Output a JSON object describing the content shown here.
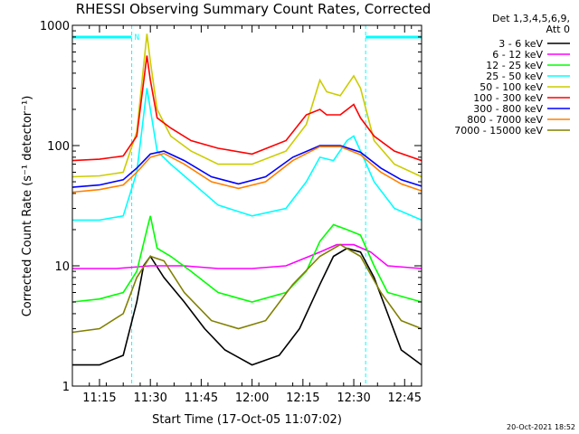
{
  "chart_data": {
    "type": "line",
    "title": "RHESSI Observing Summary Count Rates, Corrected",
    "xlabel": "Start Time (17-Oct-05 11:07:02)",
    "ylabel": "Corrected Count Rate (s⁻¹ detector⁻¹)",
    "y_scale": "log",
    "ylim": [
      1,
      1000
    ],
    "xlim_minutes": [
      667.0,
      770.0
    ],
    "x_ticks": [
      {
        "minute": 675,
        "label": "11:15"
      },
      {
        "minute": 690,
        "label": "11:30"
      },
      {
        "minute": 705,
        "label": "11:45"
      },
      {
        "minute": 720,
        "label": "12:00"
      },
      {
        "minute": 735,
        "label": "12:15"
      },
      {
        "minute": 750,
        "label": "12:30"
      },
      {
        "minute": 765,
        "label": "12:45"
      }
    ],
    "y_ticks": [
      {
        "value": 1,
        "label": "1"
      },
      {
        "value": 10,
        "label": "10"
      },
      {
        "value": 100,
        "label": "100"
      },
      {
        "value": 1000,
        "label": "1000"
      }
    ],
    "legend_header": [
      "Det 1,3,4,5,6,9,",
      "Att 0"
    ],
    "legend_position": "right",
    "night_label": "N",
    "night_intervals": [
      [
        667.0,
        684.5
      ],
      [
        753.5,
        770.0
      ]
    ],
    "timestamp": "20-Oct-2021 18:52",
    "series": [
      {
        "name": "3 - 6 keV",
        "color": "#000000",
        "x": [
          667,
          675,
          682,
          686,
          688,
          690,
          694,
          700,
          706,
          712,
          720,
          728,
          734,
          740,
          744,
          748,
          752,
          756,
          760,
          764,
          770
        ],
        "y": [
          1.5,
          1.5,
          1.8,
          5,
          10,
          12,
          8,
          5,
          3,
          2,
          1.5,
          1.8,
          3,
          7,
          12,
          14,
          13,
          8,
          4,
          2,
          1.5
        ]
      },
      {
        "name": "6 - 12 keV",
        "color": "#ff00ff",
        "x": [
          667,
          680,
          690,
          700,
          710,
          720,
          730,
          740,
          745,
          750,
          755,
          760,
          770
        ],
        "y": [
          9.5,
          9.5,
          10,
          10,
          9.5,
          9.5,
          10,
          13,
          15,
          15,
          13,
          10,
          9.5
        ]
      },
      {
        "name": "12 - 25 keV",
        "color": "#00ff00",
        "x": [
          667,
          675,
          682,
          686,
          689,
          690,
          692,
          696,
          702,
          710,
          720,
          730,
          736,
          740,
          744,
          748,
          752,
          756,
          760,
          770
        ],
        "y": [
          5,
          5.3,
          6,
          9,
          20,
          26,
          14,
          12,
          9,
          6,
          5,
          6,
          9,
          16,
          22,
          20,
          18,
          10,
          6,
          5
        ]
      },
      {
        "name": "25 - 50 keV",
        "color": "#00ffff",
        "x": [
          667,
          675,
          682,
          686,
          689,
          690,
          692,
          696,
          702,
          710,
          720,
          730,
          736,
          740,
          744,
          748,
          750,
          752,
          756,
          762,
          770
        ],
        "y": [
          24,
          24,
          26,
          60,
          300,
          200,
          90,
          70,
          50,
          32,
          26,
          30,
          50,
          80,
          75,
          110,
          120,
          90,
          50,
          30,
          24
        ]
      },
      {
        "name": "50 - 100 keV",
        "color": "#cccc00",
        "x": [
          667,
          675,
          682,
          686,
          689,
          690,
          692,
          696,
          702,
          710,
          720,
          730,
          736,
          740,
          742,
          746,
          750,
          752,
          756,
          762,
          770
        ],
        "y": [
          55,
          56,
          60,
          130,
          850,
          500,
          200,
          120,
          90,
          70,
          70,
          90,
          150,
          350,
          280,
          260,
          380,
          300,
          110,
          70,
          55
        ]
      },
      {
        "name": "100 - 300 keV",
        "color": "#ff0000",
        "x": [
          667,
          675,
          682,
          686,
          689,
          690,
          692,
          696,
          702,
          710,
          720,
          730,
          736,
          740,
          742,
          746,
          750,
          752,
          756,
          762,
          770
        ],
        "y": [
          75,
          77,
          82,
          120,
          560,
          350,
          170,
          140,
          110,
          95,
          85,
          110,
          180,
          200,
          180,
          180,
          220,
          170,
          120,
          90,
          75
        ]
      },
      {
        "name": "300 - 800 keV",
        "color": "#0000ff",
        "x": [
          667,
          675,
          682,
          686,
          690,
          694,
          700,
          708,
          716,
          724,
          732,
          740,
          746,
          752,
          758,
          764,
          770
        ],
        "y": [
          45,
          47,
          52,
          65,
          85,
          90,
          75,
          55,
          48,
          55,
          80,
          100,
          100,
          88,
          65,
          52,
          46
        ]
      },
      {
        "name": "800 - 7000 keV",
        "color": "#ff8000",
        "x": [
          667,
          675,
          682,
          686,
          690,
          694,
          700,
          708,
          716,
          724,
          732,
          740,
          746,
          752,
          758,
          764,
          770
        ],
        "y": [
          41,
          43,
          47,
          60,
          80,
          86,
          70,
          50,
          44,
          50,
          75,
          98,
          98,
          84,
          60,
          48,
          42
        ]
      },
      {
        "name": "7000 - 15000 keV",
        "color": "#808000",
        "x": [
          667,
          675,
          682,
          686,
          690,
          694,
          700,
          708,
          716,
          724,
          732,
          740,
          746,
          752,
          758,
          764,
          770
        ],
        "y": [
          2.8,
          3,
          4,
          8,
          12,
          11,
          6,
          3.5,
          3,
          3.5,
          7,
          12,
          15,
          12,
          6,
          3.5,
          3
        ]
      }
    ]
  }
}
